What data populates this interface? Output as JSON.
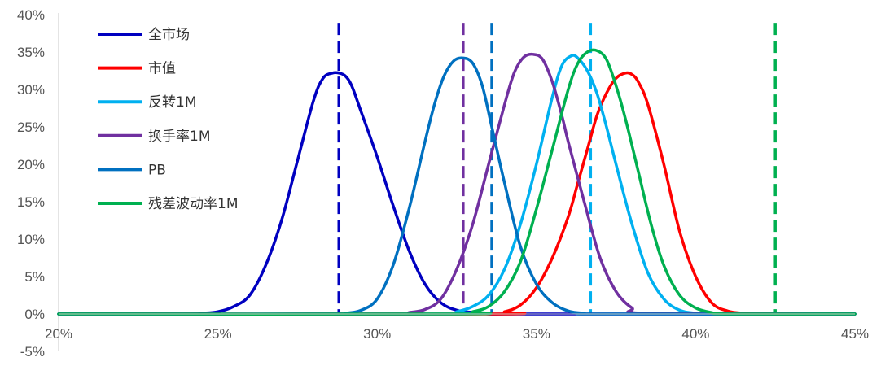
{
  "chart_data": {
    "type": "line",
    "title": "",
    "xlabel": "",
    "ylabel": "",
    "xlim": [
      0.2,
      0.45
    ],
    "ylim": [
      -0.05,
      0.4
    ],
    "x_ticks": [
      "20%",
      "25%",
      "30%",
      "35%",
      "40%",
      "45%"
    ],
    "y_ticks": [
      "-5%",
      "0%",
      "5%",
      "10%",
      "15%",
      "20%",
      "25%",
      "30%",
      "35%",
      "40%"
    ],
    "grid": false,
    "legend_position": "top-left",
    "series": [
      {
        "name": "全市场",
        "color": "#0000C0",
        "x": [
          0.2,
          0.24,
          0.245,
          0.25,
          0.255,
          0.26,
          0.265,
          0.27,
          0.275,
          0.28,
          0.283,
          0.286,
          0.288,
          0.29,
          0.292,
          0.295,
          0.3,
          0.305,
          0.31,
          0.315,
          0.32,
          0.325,
          0.33,
          0.335,
          0.34,
          0.36,
          0.45
        ],
        "y": [
          0.0,
          0.0,
          0.001,
          0.003,
          0.01,
          0.025,
          0.065,
          0.125,
          0.205,
          0.285,
          0.315,
          0.322,
          0.322,
          0.318,
          0.305,
          0.27,
          0.21,
          0.145,
          0.085,
          0.04,
          0.015,
          0.005,
          0.002,
          0.0,
          0.0,
          0.0,
          0.0
        ],
        "vline": 0.288
      },
      {
        "name": "市值",
        "color": "#FF0000",
        "x": [
          0.2,
          0.335,
          0.34,
          0.345,
          0.35,
          0.355,
          0.36,
          0.363,
          0.366,
          0.369,
          0.372,
          0.375,
          0.378,
          0.38,
          0.382,
          0.385,
          0.39,
          0.395,
          0.4,
          0.405,
          0.41,
          0.415,
          0.42,
          0.45
        ],
        "y": [
          0.0,
          0.0,
          0.003,
          0.012,
          0.035,
          0.075,
          0.13,
          0.175,
          0.22,
          0.265,
          0.295,
          0.315,
          0.322,
          0.32,
          0.31,
          0.28,
          0.2,
          0.11,
          0.05,
          0.015,
          0.004,
          0.001,
          0.0,
          0.0
        ],
        "vline": null
      },
      {
        "name": "反转1M",
        "color": "#00B0F0",
        "x": [
          0.2,
          0.32,
          0.325,
          0.33,
          0.335,
          0.34,
          0.345,
          0.35,
          0.355,
          0.358,
          0.361,
          0.363,
          0.366,
          0.369,
          0.372,
          0.375,
          0.38,
          0.385,
          0.39,
          0.395,
          0.4,
          0.405,
          0.45
        ],
        "y": [
          0.0,
          0.0,
          0.003,
          0.01,
          0.025,
          0.06,
          0.12,
          0.2,
          0.29,
          0.332,
          0.345,
          0.342,
          0.325,
          0.295,
          0.25,
          0.2,
          0.12,
          0.055,
          0.02,
          0.005,
          0.001,
          0.0,
          0.0
        ],
        "vline": 0.367
      },
      {
        "name": "换手率1M",
        "color": "#7030A0",
        "x": [
          0.2,
          0.305,
          0.31,
          0.315,
          0.32,
          0.325,
          0.33,
          0.335,
          0.34,
          0.343,
          0.346,
          0.349,
          0.352,
          0.355,
          0.358,
          0.36,
          0.365,
          0.37,
          0.375,
          0.38,
          0.385,
          0.45
        ],
        "y": [
          0.0,
          0.0,
          0.002,
          0.006,
          0.02,
          0.06,
          0.12,
          0.2,
          0.28,
          0.322,
          0.343,
          0.347,
          0.34,
          0.31,
          0.265,
          0.23,
          0.15,
          0.075,
          0.03,
          0.008,
          0.001,
          0.0
        ],
        "vline": 0.327
      },
      {
        "name": "PB",
        "color": "#0070C0",
        "x": [
          0.2,
          0.285,
          0.29,
          0.295,
          0.3,
          0.305,
          0.31,
          0.315,
          0.318,
          0.321,
          0.324,
          0.327,
          0.33,
          0.333,
          0.336,
          0.34,
          0.345,
          0.35,
          0.355,
          0.36,
          0.365,
          0.37,
          0.45
        ],
        "y": [
          0.0,
          0.0,
          0.001,
          0.005,
          0.02,
          0.065,
          0.14,
          0.23,
          0.28,
          0.318,
          0.338,
          0.342,
          0.335,
          0.305,
          0.25,
          0.175,
          0.09,
          0.04,
          0.015,
          0.004,
          0.001,
          0.0,
          0.0
        ],
        "vline": 0.336
      },
      {
        "name": "残差波动率1M",
        "color": "#00B050",
        "x": [
          0.2,
          0.325,
          0.33,
          0.335,
          0.34,
          0.345,
          0.35,
          0.355,
          0.36,
          0.363,
          0.366,
          0.369,
          0.372,
          0.375,
          0.378,
          0.382,
          0.386,
          0.39,
          0.395,
          0.4,
          0.405,
          0.41,
          0.45
        ],
        "y": [
          0.0,
          0.0,
          0.003,
          0.01,
          0.03,
          0.07,
          0.14,
          0.22,
          0.3,
          0.335,
          0.35,
          0.352,
          0.34,
          0.305,
          0.26,
          0.19,
          0.12,
          0.065,
          0.025,
          0.008,
          0.002,
          0.0,
          0.0
        ],
        "vline": 0.425
      }
    ]
  }
}
